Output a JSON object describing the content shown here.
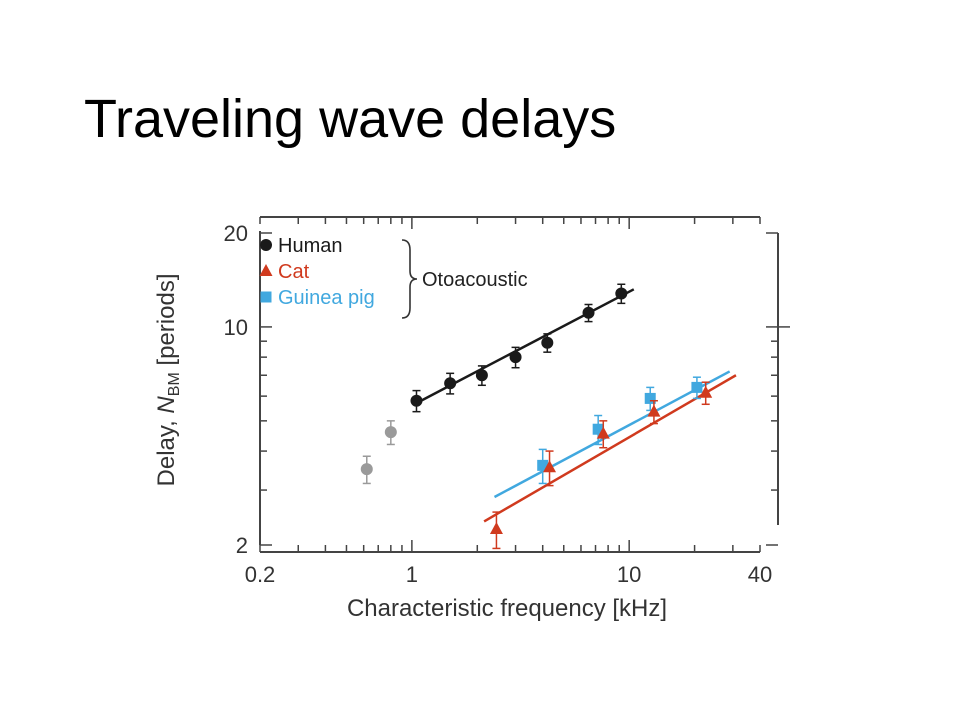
{
  "slide": {
    "title": "Traveling wave delays"
  },
  "chart_data": {
    "type": "scatter",
    "title": "",
    "xlabel": "Characteristic frequency [kHz]",
    "ylabel_parts": {
      "pre": "Delay, ",
      "var": "N",
      "sub": "BM",
      "post": " [periods]"
    },
    "x_scale": "log",
    "y_scale": "log",
    "xlim": [
      0.2,
      40
    ],
    "ylim": [
      2,
      20
    ],
    "x_ticks": [
      {
        "value": 0.2,
        "label": "0.2"
      },
      {
        "value": 1,
        "label": "1"
      },
      {
        "value": 10,
        "label": "10"
      },
      {
        "value": 40,
        "label": "40"
      }
    ],
    "y_ticks": [
      {
        "value": 2,
        "label": "2"
      },
      {
        "value": 10,
        "label": "10"
      },
      {
        "value": 20,
        "label": "20"
      }
    ],
    "legend": {
      "placement": "top-left",
      "bracket_label": "Otoacoustic",
      "entries": [
        {
          "name": "Human",
          "marker": "circle",
          "color": "#1a1a1a",
          "text_color": "#1a1a1a"
        },
        {
          "name": "Cat",
          "marker": "triangle",
          "color": "#d03a1e",
          "text_color": "#d03a1e"
        },
        {
          "name": "Guinea pig",
          "marker": "square",
          "color": "#41a8df",
          "text_color": "#41a8df"
        }
      ]
    },
    "series": [
      {
        "name": "Human",
        "marker": "circle",
        "color": "#1a1a1a",
        "points": [
          {
            "x": 1.05,
            "y": 5.8,
            "err": 0.45
          },
          {
            "x": 1.5,
            "y": 6.6,
            "err": 0.5
          },
          {
            "x": 2.1,
            "y": 7.0,
            "err": 0.5
          },
          {
            "x": 3.0,
            "y": 8.0,
            "err": 0.6
          },
          {
            "x": 4.2,
            "y": 8.9,
            "err": 0.6
          },
          {
            "x": 6.5,
            "y": 11.1,
            "err": 0.7
          },
          {
            "x": 9.2,
            "y": 12.8,
            "err": 0.9
          }
        ],
        "fit": {
          "x": [
            1.05,
            10.5
          ],
          "y": [
            5.7,
            13.2
          ]
        }
      },
      {
        "name": "Human (low frequency)",
        "marker": "circle",
        "color": "#9a9a9a",
        "points": [
          {
            "x": 0.62,
            "y": 3.5,
            "err": 0.35
          },
          {
            "x": 0.8,
            "y": 4.6,
            "err": 0.4
          }
        ]
      },
      {
        "name": "Guinea pig",
        "marker": "square",
        "color": "#41a8df",
        "points": [
          {
            "x": 4.0,
            "y": 3.6,
            "err": 0.45
          },
          {
            "x": 7.2,
            "y": 4.7,
            "err": 0.5
          },
          {
            "x": 12.5,
            "y": 5.9,
            "err": 0.5
          },
          {
            "x": 20.5,
            "y": 6.4,
            "err": 0.5
          }
        ],
        "fit": {
          "x": [
            2.4,
            29.0
          ],
          "y": [
            2.85,
            7.2
          ]
        }
      },
      {
        "name": "Cat",
        "marker": "triangle",
        "color": "#d03a1e",
        "points": [
          {
            "x": 2.45,
            "y": 2.25,
            "err": 0.3
          },
          {
            "x": 4.3,
            "y": 3.55,
            "err": 0.45
          },
          {
            "x": 7.6,
            "y": 4.55,
            "err": 0.45
          },
          {
            "x": 13.0,
            "y": 5.35,
            "err": 0.45
          },
          {
            "x": 22.5,
            "y": 6.15,
            "err": 0.5
          }
        ],
        "fit": {
          "x": [
            2.15,
            31.0
          ],
          "y": [
            2.38,
            7.0
          ]
        }
      }
    ]
  }
}
